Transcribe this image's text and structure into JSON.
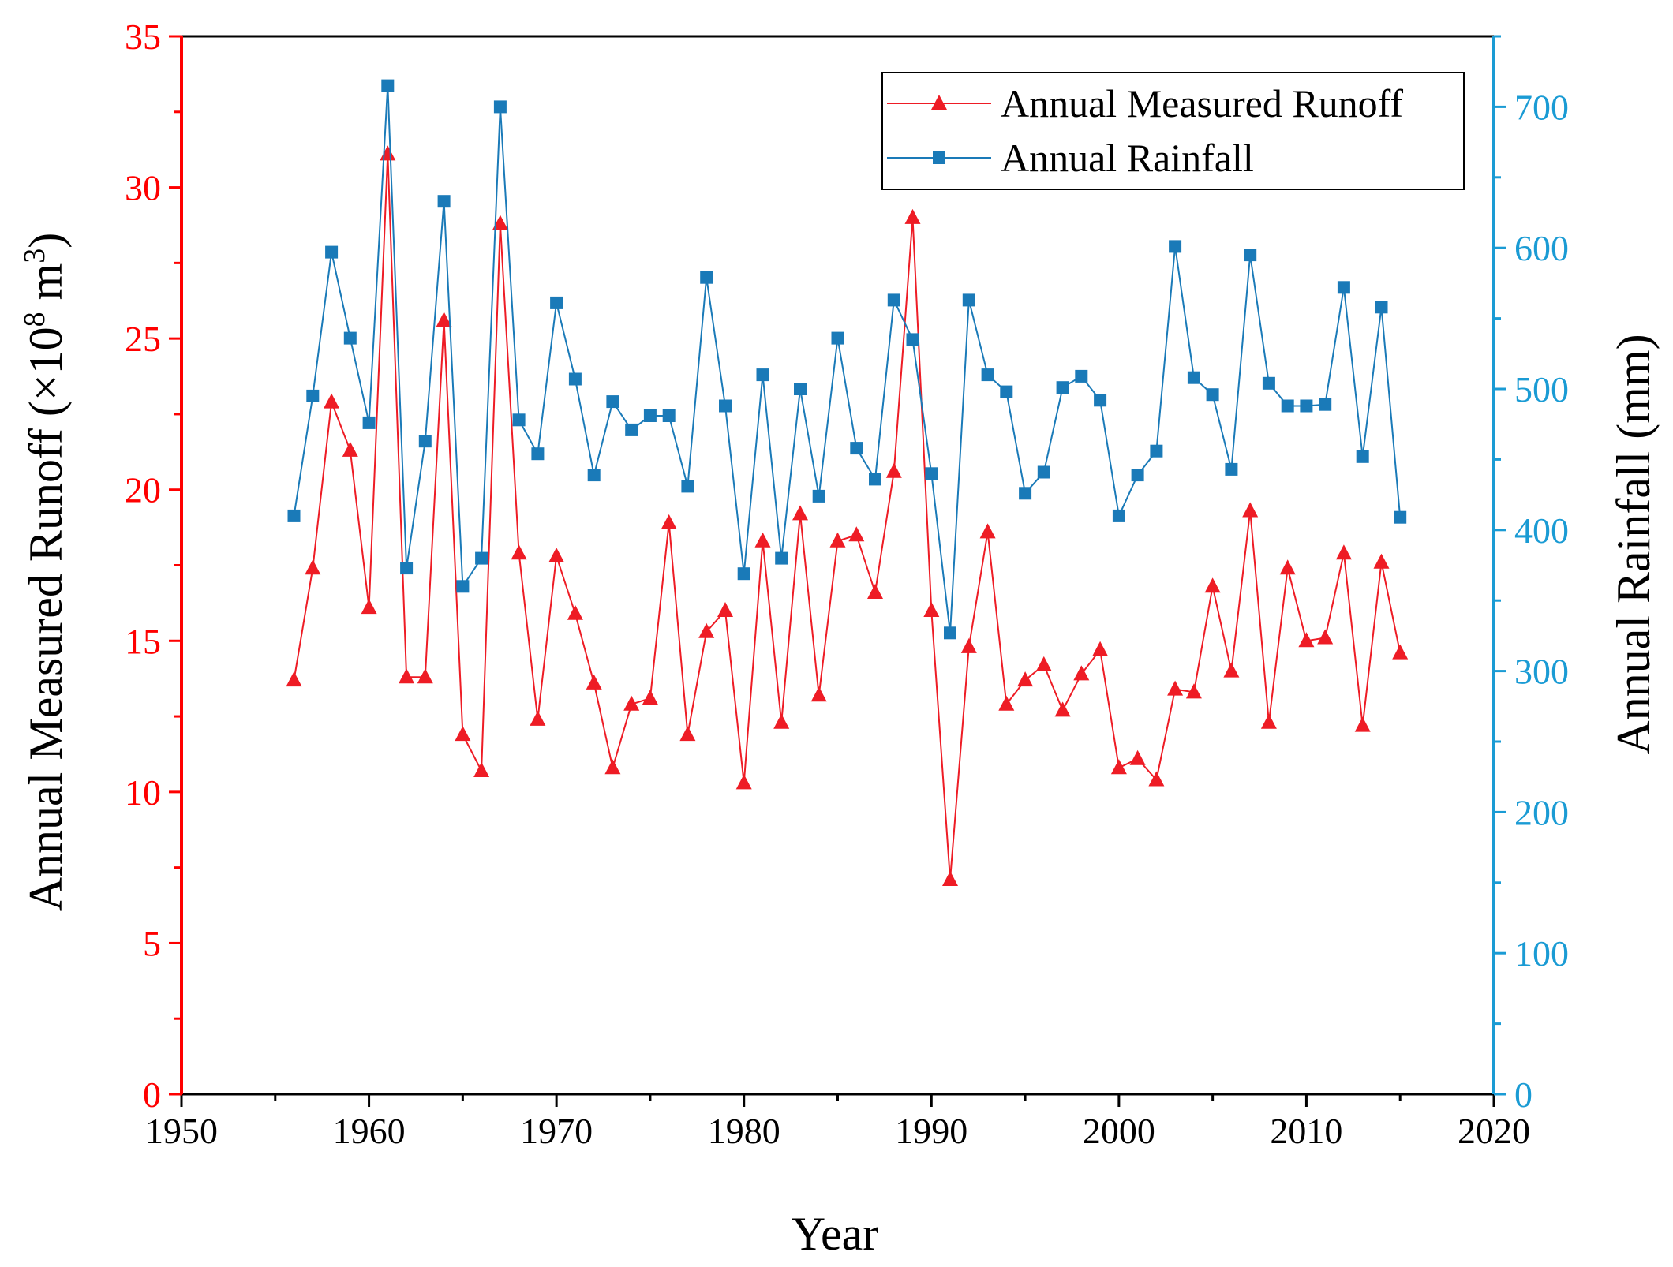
{
  "chart_data": {
    "type": "line",
    "title": "",
    "xlabel": "Year",
    "ylabel_left": "Annual Measured Runoff (×10⁸ m³)",
    "ylabel_left_parts": {
      "prefix": "Annual Measured Runoff (×10",
      "sup1": "8",
      "middle": " m",
      "sup2": "3",
      "suffix": ")"
    },
    "ylabel_right": "Annual Rainfall (mm)",
    "xlim": [
      1950,
      2020
    ],
    "xticks": [
      1950,
      1960,
      1970,
      1980,
      1990,
      2000,
      2010,
      2020
    ],
    "ylim_left": [
      0,
      35
    ],
    "yticks_left": [
      0,
      5,
      10,
      15,
      20,
      25,
      30,
      35
    ],
    "ylim_right": [
      0,
      750
    ],
    "yticks_right": [
      0,
      100,
      200,
      300,
      400,
      500,
      600,
      700
    ],
    "grid": false,
    "legend_position": "top-right",
    "colors": {
      "runoff": "#ee1c25",
      "rainfall": "#1a7ab8",
      "left_axis": "#ff0000",
      "right_axis": "#1a9bd4",
      "frame": "#000000"
    },
    "x": [
      1956,
      1957,
      1958,
      1959,
      1960,
      1961,
      1962,
      1963,
      1964,
      1965,
      1966,
      1967,
      1968,
      1969,
      1970,
      1971,
      1972,
      1973,
      1974,
      1975,
      1976,
      1977,
      1978,
      1979,
      1980,
      1981,
      1982,
      1983,
      1984,
      1985,
      1986,
      1987,
      1988,
      1989,
      1990,
      1991,
      1992,
      1993,
      1994,
      1995,
      1996,
      1997,
      1998,
      1999,
      2000,
      2001,
      2002,
      2003,
      2004,
      2005,
      2006,
      2007,
      2008,
      2009,
      2010,
      2011,
      2012,
      2013,
      2014,
      2015
    ],
    "series": [
      {
        "name": "Annual Measured Runoff",
        "axis": "left",
        "marker": "triangle",
        "values": [
          13.7,
          17.4,
          22.9,
          21.3,
          16.1,
          31.1,
          13.8,
          13.8,
          25.6,
          11.9,
          10.7,
          28.8,
          17.9,
          12.4,
          17.8,
          15.9,
          13.6,
          10.8,
          12.9,
          13.1,
          18.9,
          11.9,
          15.3,
          16.0,
          10.3,
          18.3,
          12.3,
          19.2,
          13.2,
          18.3,
          18.5,
          16.6,
          20.6,
          29.0,
          16.0,
          7.1,
          14.8,
          18.6,
          12.9,
          13.7,
          14.2,
          12.7,
          13.9,
          14.7,
          10.8,
          11.1,
          10.4,
          13.4,
          13.3,
          16.8,
          14.0,
          19.3,
          12.3,
          17.4,
          15.0,
          15.1,
          17.9,
          12.2,
          17.6,
          14.6
        ]
      },
      {
        "name": "Annual Rainfall",
        "axis": "right",
        "marker": "square",
        "values": [
          410,
          495,
          597,
          536,
          476,
          715,
          373,
          463,
          633,
          360,
          380,
          700,
          478,
          454,
          561,
          507,
          439,
          491,
          471,
          481,
          481,
          431,
          579,
          488,
          369,
          510,
          380,
          500,
          424,
          536,
          458,
          436,
          563,
          535,
          440,
          327,
          563,
          510,
          498,
          426,
          441,
          501,
          509,
          492,
          410,
          439,
          456,
          601,
          508,
          496,
          443,
          595,
          504,
          488,
          488,
          489,
          572,
          452,
          558,
          409
        ]
      }
    ]
  }
}
